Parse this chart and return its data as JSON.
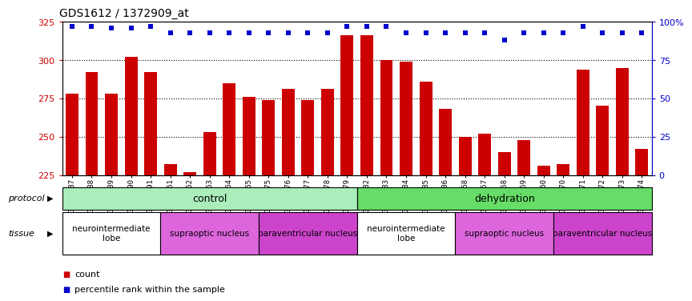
{
  "title": "GDS1612 / 1372909_at",
  "samples": [
    "GSM69787",
    "GSM69788",
    "GSM69789",
    "GSM69790",
    "GSM69791",
    "GSM69461",
    "GSM69462",
    "GSM69463",
    "GSM69464",
    "GSM69465",
    "GSM69475",
    "GSM69476",
    "GSM69477",
    "GSM69478",
    "GSM69479",
    "GSM69782",
    "GSM69783",
    "GSM69784",
    "GSM69785",
    "GSM69786",
    "GSM69268",
    "GSM69457",
    "GSM69458",
    "GSM69459",
    "GSM69460",
    "GSM69470",
    "GSM69471",
    "GSM69472",
    "GSM69473",
    "GSM69474"
  ],
  "counts": [
    278,
    292,
    278,
    302,
    292,
    232,
    227,
    253,
    285,
    276,
    274,
    281,
    274,
    281,
    316,
    316,
    300,
    299,
    286,
    268,
    250,
    252,
    240,
    248,
    231,
    232,
    294,
    270,
    295,
    242
  ],
  "percentile_ranks": [
    97,
    97,
    96,
    96,
    97,
    93,
    93,
    93,
    93,
    93,
    93,
    93,
    93,
    93,
    97,
    97,
    97,
    93,
    93,
    93,
    93,
    93,
    88,
    93,
    93,
    93,
    97,
    93,
    93,
    93
  ],
  "ylim_left": [
    225,
    325
  ],
  "yticks_left": [
    225,
    250,
    275,
    300,
    325
  ],
  "ylim_right": [
    0,
    100
  ],
  "yticks_right": [
    0,
    25,
    50,
    75,
    100
  ],
  "bar_color": "#cc0000",
  "dot_color": "#0000cc",
  "dot_size": 18,
  "protocol_groups": [
    {
      "label": "control",
      "start": 0,
      "end": 15,
      "color": "#aaeebb"
    },
    {
      "label": "dehydration",
      "start": 15,
      "end": 30,
      "color": "#66dd66"
    }
  ],
  "tissue_groups": [
    {
      "label": "neurointermediate\nlobe",
      "start": 0,
      "end": 5,
      "color": "#ffffff"
    },
    {
      "label": "supraoptic nucleus",
      "start": 5,
      "end": 10,
      "color": "#dd66dd"
    },
    {
      "label": "paraventricular nucleus",
      "start": 10,
      "end": 15,
      "color": "#cc44cc"
    },
    {
      "label": "neurointermediate\nlobe",
      "start": 15,
      "end": 20,
      "color": "#ffffff"
    },
    {
      "label": "supraoptic nucleus",
      "start": 20,
      "end": 25,
      "color": "#dd66dd"
    },
    {
      "label": "paraventricular nucleus",
      "start": 25,
      "end": 30,
      "color": "#cc44cc"
    }
  ],
  "protocol_label": "protocol",
  "tissue_label": "tissue",
  "legend_count_color": "#cc0000",
  "legend_pct_color": "#0000cc",
  "bg_color": "#ffffff"
}
